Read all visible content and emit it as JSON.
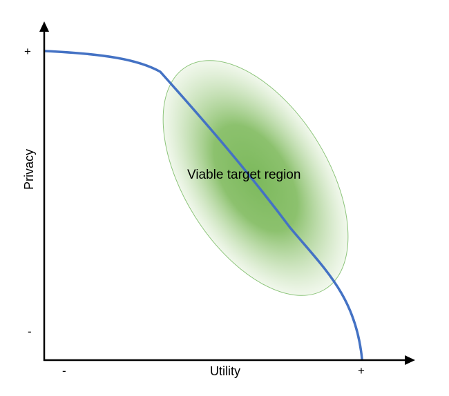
{
  "axes": {
    "x_label": "Utility",
    "y_label": "Privacy",
    "x_min_label": "-",
    "x_max_label": "+",
    "y_min_label": "-",
    "y_max_label": "+"
  },
  "region": {
    "label": "Viable target region",
    "color": "#7cb95c",
    "edge_color": "#8cc47a"
  },
  "curve": {
    "color": "#4472c4"
  },
  "axis_color": "#000000"
}
